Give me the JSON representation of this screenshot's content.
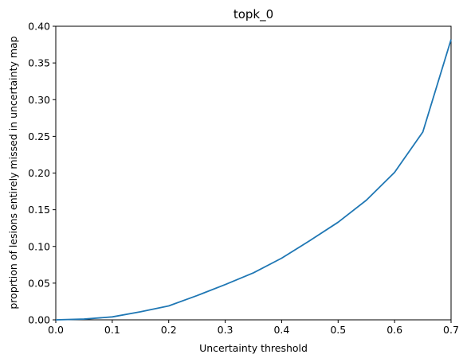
{
  "chart_data": {
    "type": "line",
    "title": "topk_0",
    "xlabel": "Uncertainty threshold",
    "ylabel": "proprtion of lesions entirely missed in uncertainty map",
    "xlim": [
      0.0,
      0.7
    ],
    "ylim": [
      0.0,
      0.4
    ],
    "xticks": [
      "0.0",
      "0.1",
      "0.2",
      "0.3",
      "0.4",
      "0.5",
      "0.6",
      "0.7"
    ],
    "yticks": [
      "0.00",
      "0.05",
      "0.10",
      "0.15",
      "0.20",
      "0.25",
      "0.30",
      "0.35",
      "0.40"
    ],
    "grid": false,
    "series": [
      {
        "color": "#1f77b4",
        "x": [
          0.0,
          0.05,
          0.1,
          0.15,
          0.2,
          0.25,
          0.3,
          0.35,
          0.4,
          0.45,
          0.5,
          0.55,
          0.6,
          0.65,
          0.7
        ],
        "y": [
          0.0,
          0.001,
          0.004,
          0.011,
          0.019,
          0.033,
          0.048,
          0.064,
          0.084,
          0.108,
          0.133,
          0.163,
          0.201,
          0.256,
          0.382
        ]
      }
    ]
  }
}
